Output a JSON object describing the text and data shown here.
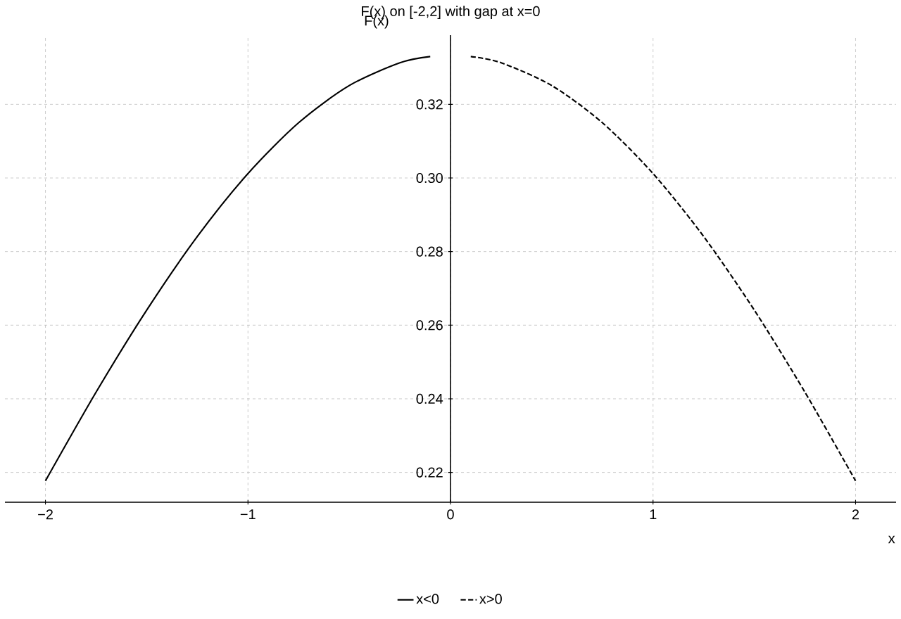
{
  "chart_data": {
    "type": "line",
    "title": "F(x) on [-2,2] with gap at x=0",
    "xlabel": "x",
    "ylabel": "F(x)",
    "series": [
      {
        "name": "x<0",
        "color": "#000000",
        "line_style": "solid",
        "x": [
          -2,
          -1.75,
          -1.5,
          -1.25,
          -1,
          -0.75,
          -0.5,
          -0.25,
          -0.1
        ],
        "values": [
          0.2177,
          0.2418,
          0.2641,
          0.2841,
          0.3012,
          0.315,
          0.3251,
          0.3313,
          0.333
        ]
      },
      {
        "name": "x>0",
        "color": "#000000",
        "line_style": "dashed",
        "x": [
          0.1,
          0.25,
          0.5,
          0.75,
          1,
          1.25,
          1.5,
          1.75,
          2
        ],
        "values": [
          0.333,
          0.3313,
          0.3251,
          0.315,
          0.3012,
          0.2841,
          0.2641,
          0.2418,
          0.2177
        ]
      }
    ],
    "xlim": [
      -2.2,
      2.2
    ],
    "ylim": [
      0.2119,
      0.3388
    ],
    "xticks": [
      {
        "value": -2,
        "label": "−2"
      },
      {
        "value": -1,
        "label": "−1"
      },
      0,
      1,
      2
    ],
    "yticks": [
      {
        "value": 0.22,
        "label": "0.22"
      },
      {
        "value": 0.24,
        "label": "0.24"
      },
      {
        "value": 0.26,
        "label": "0.26"
      },
      {
        "value": 0.28,
        "label": "0.28"
      },
      {
        "value": 0.3,
        "label": "0.30"
      },
      {
        "value": 0.32,
        "label": "0.32"
      }
    ],
    "grid": true,
    "legend": "bottom"
  }
}
